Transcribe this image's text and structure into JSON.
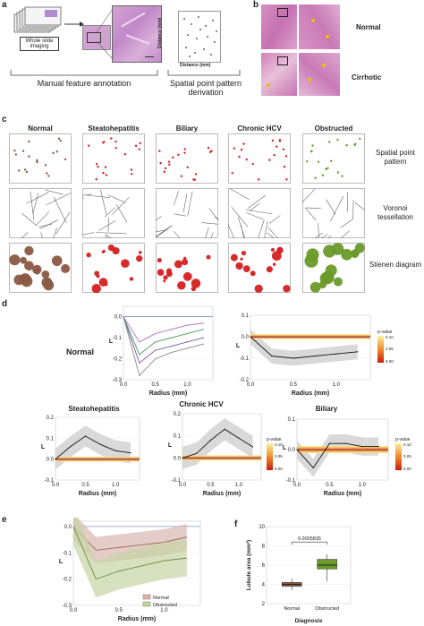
{
  "panels": {
    "a": {
      "letter": "a",
      "wsi_label": "Whole slide imaging",
      "manual_label": "Manual feature annotation",
      "spatial_label": "Spatial point pattern derivation",
      "scatter_xlabel": "Distance (mm)",
      "scatter_ylabel": "Distance (mm)"
    },
    "b": {
      "letter": "b",
      "rows": [
        "Normal",
        "Cirrhotic"
      ]
    },
    "c": {
      "letter": "c",
      "columns": [
        "Normal",
        "Steatohepatitis",
        "Biliary",
        "Chronic HCV",
        "Obstructed"
      ],
      "rows": [
        "Spatial point pattern",
        "Voronoi tessellation",
        "Stienen diagram"
      ]
    },
    "d": {
      "letter": "d",
      "normal_label": "Normal",
      "titles": [
        "Steatohepatitis",
        "Chronic HCV",
        "Biliary"
      ],
      "xlabel": "Radius (mm)",
      "ylabel": "L",
      "legend_title": "p-value",
      "legend_ticks": [
        "0.00",
        "0.05",
        "0.10"
      ]
    },
    "e": {
      "letter": "e",
      "xlabel": "Radius (mm)",
      "ylabel": "L",
      "legend": [
        "Normal",
        "Obstructed"
      ]
    },
    "f": {
      "letter": "f",
      "ylabel": "Lobule area (mm²)",
      "xlabel": "Diagnosis",
      "categories": [
        "Normal",
        "Obstructed"
      ],
      "pvalue": "0.0005835"
    }
  },
  "axes": {
    "d_normal_left": {
      "yticks": [
        "0.0",
        "-0.1",
        "-0.2",
        "-0.3"
      ],
      "xticks": [
        "0.0",
        "0.5",
        "1.0"
      ]
    },
    "d_normal_right": {
      "yticks": [
        "0.1",
        "0.0",
        "-0.1",
        "-0.2"
      ],
      "xticks": [
        "0.0",
        "0.5",
        "1.0"
      ]
    },
    "d_steato": {
      "yticks": [
        "0.2",
        "0.1",
        "0.0",
        "-0.1"
      ],
      "xticks": [
        "0.0",
        "0.5",
        "1.0"
      ]
    },
    "d_hcv": {
      "yticks": [
        "0.2",
        "0.1",
        "0.0",
        "-0.1"
      ],
      "xticks": [
        "0.0",
        "0.5",
        "1.0"
      ]
    },
    "d_biliary": {
      "yticks": [
        "0.1",
        "0.0",
        "-0.1"
      ],
      "xticks": [
        "0.0",
        "0.5",
        "1.0"
      ]
    },
    "e": {
      "yticks": [
        "0.0",
        "-0.1",
        "-0.2",
        "-0.3"
      ],
      "xticks": [
        "0.0",
        "0.5",
        "1.0"
      ]
    },
    "f": {
      "yticks": [
        "10",
        "8",
        "6",
        "4",
        "2"
      ]
    }
  },
  "colors": {
    "normal_brown": "#8a5a44",
    "red": "#d42020",
    "green": "#6a9a2a",
    "he_pink": "#c77fb6",
    "band_grey": "#cfcfcf",
    "normal_band": "#d8b8b0",
    "obstructed_band": "#c6d4a4"
  },
  "chart_data": [
    {
      "type": "line",
      "title": "Normal",
      "xlabel": "Radius (mm)",
      "ylabel": "L",
      "x": [
        0.0,
        0.25,
        0.5,
        0.75,
        1.0,
        1.25
      ],
      "series": [
        {
          "values": [
            0.0,
            -0.22,
            -0.16,
            -0.14,
            -0.12,
            -0.1
          ]
        },
        {
          "values": [
            0.0,
            -0.18,
            -0.12,
            -0.1,
            -0.08,
            -0.06
          ]
        },
        {
          "values": [
            0.0,
            -0.28,
            -0.2,
            -0.17,
            -0.15,
            -0.13
          ]
        },
        {
          "values": [
            0.0,
            -0.12,
            -0.08,
            -0.06,
            -0.04,
            -0.03
          ]
        }
      ],
      "ylim": [
        -0.3,
        0.05
      ]
    },
    {
      "type": "line",
      "title": "",
      "xlabel": "Radius (mm)",
      "ylabel": "L",
      "x": [
        0.0,
        0.25,
        0.5,
        0.75,
        1.0,
        1.25
      ],
      "series": [
        {
          "values": [
            0.0,
            -0.09,
            -0.1,
            -0.09,
            -0.08,
            -0.07
          ]
        }
      ],
      "ylim": [
        -0.2,
        0.1
      ]
    },
    {
      "type": "line",
      "title": "Steatohepatitis",
      "xlabel": "Radius (mm)",
      "ylabel": "L",
      "x": [
        0.0,
        0.25,
        0.5,
        0.75,
        1.0,
        1.25
      ],
      "series": [
        {
          "values": [
            0.0,
            0.06,
            0.11,
            0.07,
            0.04,
            0.03
          ]
        }
      ],
      "ylim": [
        -0.1,
        0.2
      ]
    },
    {
      "type": "line",
      "title": "Chronic HCV",
      "xlabel": "Radius (mm)",
      "ylabel": "L",
      "x": [
        0.0,
        0.25,
        0.5,
        0.75,
        1.0,
        1.25
      ],
      "series": [
        {
          "values": [
            0.0,
            0.02,
            0.08,
            0.13,
            0.09,
            0.05
          ]
        }
      ],
      "ylim": [
        -0.1,
        0.2
      ]
    },
    {
      "type": "line",
      "title": "Biliary",
      "xlabel": "Radius (mm)",
      "ylabel": "L",
      "x": [
        0.0,
        0.25,
        0.5,
        0.75,
        1.0,
        1.25
      ],
      "series": [
        {
          "values": [
            0.0,
            -0.06,
            0.02,
            0.02,
            0.01,
            0.01
          ]
        }
      ],
      "ylim": [
        -0.1,
        0.1
      ]
    },
    {
      "type": "area",
      "title": "",
      "xlabel": "Radius (mm)",
      "ylabel": "L",
      "x": [
        0.0,
        0.25,
        0.5,
        0.75,
        1.0,
        1.25
      ],
      "series": [
        {
          "name": "Normal",
          "values": [
            0.0,
            -0.09,
            -0.08,
            -0.07,
            -0.06,
            -0.04
          ]
        },
        {
          "name": "Obstructed",
          "values": [
            0.0,
            -0.2,
            -0.17,
            -0.15,
            -0.13,
            -0.12
          ]
        }
      ],
      "ylim": [
        -0.3,
        0.02
      ]
    },
    {
      "type": "box",
      "title": "",
      "xlabel": "Diagnosis",
      "ylabel": "Lobule area (mm²)",
      "categories": [
        "Normal",
        "Obstructed"
      ],
      "series": [
        {
          "name": "Normal",
          "values": [
            3.4,
            3.8,
            4.0,
            4.2,
            4.6
          ]
        },
        {
          "name": "Obstructed",
          "values": [
            4.3,
            5.6,
            6.0,
            6.6,
            7.1
          ]
        }
      ],
      "ylim": [
        2,
        10
      ]
    }
  ]
}
